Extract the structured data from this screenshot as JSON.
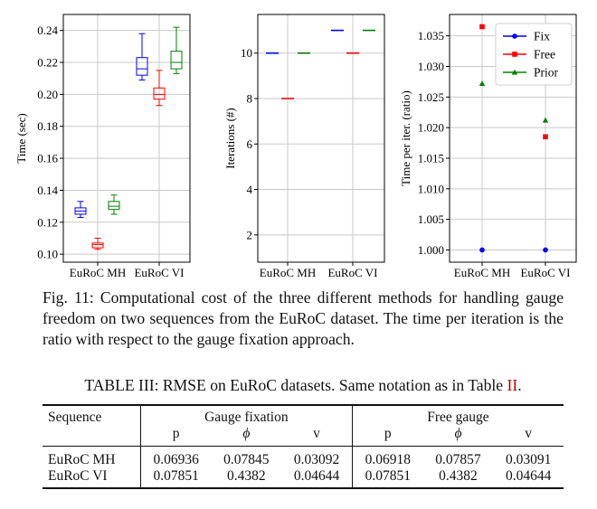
{
  "figure": {
    "caption": "Fig. 11: Computational cost of the three different methods for handling gauge freedom on two sequences from the EuRoC dataset. The time per iteration is the ratio with respect to the gauge fixation approach."
  },
  "colors": {
    "fix": "#0000ff",
    "free": "#ff0000",
    "prior": "#008000",
    "grid": "#c8c8c8",
    "axis": "#000000"
  },
  "chart_data": [
    {
      "type": "box",
      "ylabel": "Time (sec)",
      "categories": [
        "EuRoC MH",
        "EuRoC VI"
      ],
      "ylim": [
        0.095,
        0.25
      ],
      "yticks": [
        "0.10",
        "0.12",
        "0.14",
        "0.16",
        "0.18",
        "0.20",
        "0.22",
        "0.24"
      ],
      "grid": true,
      "series": [
        {
          "key": "fix",
          "boxes": [
            {
              "min": 0.123,
              "q1": 0.125,
              "median": 0.127,
              "q3": 0.129,
              "max": 0.133
            },
            {
              "min": 0.209,
              "q1": 0.212,
              "median": 0.216,
              "q3": 0.223,
              "max": 0.238
            }
          ]
        },
        {
          "key": "free",
          "boxes": [
            {
              "min": 0.103,
              "q1": 0.104,
              "median": 0.106,
              "q3": 0.107,
              "max": 0.11
            },
            {
              "min": 0.193,
              "q1": 0.197,
              "median": 0.2,
              "q3": 0.204,
              "max": 0.215
            }
          ]
        },
        {
          "key": "prior",
          "boxes": [
            {
              "min": 0.125,
              "q1": 0.128,
              "median": 0.13,
              "q3": 0.133,
              "max": 0.137
            },
            {
              "min": 0.213,
              "q1": 0.216,
              "median": 0.22,
              "q3": 0.227,
              "max": 0.242
            }
          ]
        }
      ]
    },
    {
      "type": "box",
      "ylabel": "Iterations (#)",
      "categories": [
        "EuRoC MH",
        "EuRoC VI"
      ],
      "ylim": [
        0.8,
        11.7
      ],
      "yticks": [
        "2",
        "4",
        "6",
        "8",
        "10"
      ],
      "grid": true,
      "series": [
        {
          "key": "fix",
          "values": [
            10,
            11
          ]
        },
        {
          "key": "free",
          "values": [
            8,
            10
          ]
        },
        {
          "key": "prior",
          "values": [
            10,
            11
          ]
        }
      ]
    },
    {
      "type": "scatter",
      "ylabel": "Time per iter. (ratio)",
      "categories": [
        "EuRoC MH",
        "EuRoC VI"
      ],
      "ylim": [
        0.998,
        1.0385
      ],
      "yticks": [
        "1.000",
        "1.005",
        "1.010",
        "1.015",
        "1.020",
        "1.025",
        "1.030",
        "1.035"
      ],
      "grid": true,
      "legend": {
        "position": "top-right",
        "entries": [
          "Fix",
          "Free",
          "Prior"
        ]
      },
      "series": [
        {
          "name": "Fix",
          "key": "fix",
          "marker": "circle",
          "values": [
            1.0,
            1.0
          ]
        },
        {
          "name": "Free",
          "key": "free",
          "marker": "square",
          "values": [
            1.0365,
            1.0185
          ]
        },
        {
          "name": "Prior",
          "key": "prior",
          "marker": "triangle",
          "values": [
            1.0272,
            1.0212
          ]
        }
      ]
    }
  ],
  "table": {
    "title_prefix": "TABLE III: RMSE on EuRoC datasets. Same notation as in Table ",
    "title_ref": "II",
    "title_suffix": ".",
    "col_sequence": "Sequence",
    "group1": "Gauge fixation",
    "group2": "Free gauge",
    "sub_p": "p",
    "sub_phi": "ϕ",
    "sub_v": "v",
    "rows": [
      {
        "name": "EuRoC MH",
        "v1": "0.06936",
        "v2": "0.07845",
        "v3": "0.03092",
        "v4": "0.06918",
        "v5": "0.07857",
        "v6": "0.03091"
      },
      {
        "name": "EuRoC VI",
        "v1": "0.07851",
        "v2": "0.4382",
        "v3": "0.04644",
        "v4": "0.07851",
        "v5": "0.4382",
        "v6": "0.04644"
      }
    ]
  }
}
